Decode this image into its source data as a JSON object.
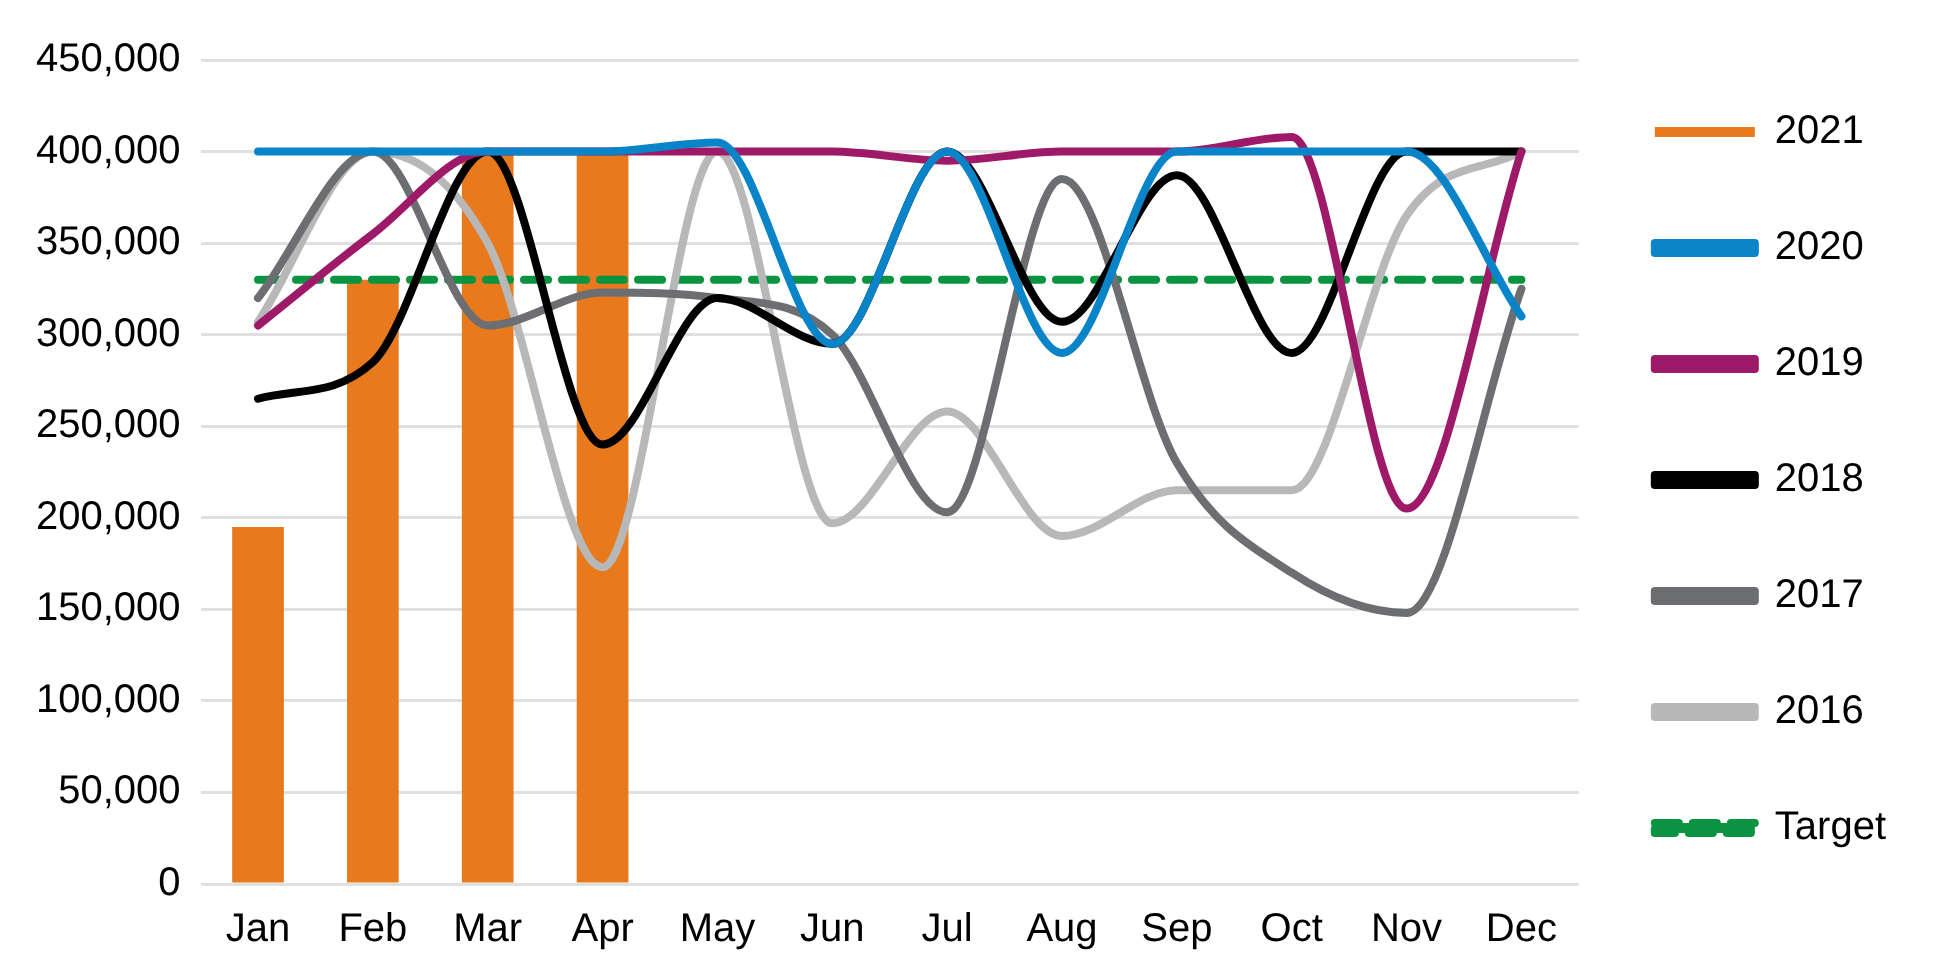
{
  "chart_data": {
    "type": "line",
    "categories": [
      "Jan",
      "Feb",
      "Mar",
      "Apr",
      "May",
      "Jun",
      "Jul",
      "Aug",
      "Sep",
      "Oct",
      "Nov",
      "Dec"
    ],
    "series": [
      {
        "name": "2021",
        "type": "bar",
        "color": "#e8791c",
        "values": [
          195000,
          330000,
          400000,
          400000,
          null,
          null,
          null,
          null,
          null,
          null,
          null,
          null
        ]
      },
      {
        "name": "2020",
        "color": "#0a84c8",
        "values": [
          400000,
          400000,
          400000,
          400000,
          405000,
          295000,
          400000,
          290000,
          400000,
          400000,
          400000,
          310000
        ]
      },
      {
        "name": "2019",
        "color": "#9e1a68",
        "values": [
          305000,
          355000,
          400000,
          400000,
          400000,
          400000,
          395000,
          400000,
          400000,
          408000,
          205000,
          400000
        ]
      },
      {
        "name": "2018",
        "color": "#000000",
        "values": [
          265000,
          285000,
          400000,
          240000,
          320000,
          295000,
          400000,
          307000,
          387000,
          290000,
          400000,
          400000
        ]
      },
      {
        "name": "2017",
        "color": "#6d6e71",
        "values": [
          320000,
          400000,
          305000,
          323000,
          320000,
          300000,
          203000,
          385000,
          230000,
          170000,
          148000,
          325000
        ]
      },
      {
        "name": "2016",
        "color": "#b8b8b8",
        "values": [
          307000,
          400000,
          350000,
          173000,
          400000,
          197000,
          258000,
          190000,
          215000,
          215000,
          365000,
          400000
        ]
      },
      {
        "name": "Target",
        "color": "#0a9340",
        "line_style": "dashed",
        "values": [
          330000,
          330000,
          330000,
          330000,
          330000,
          330000,
          330000,
          330000,
          330000,
          330000,
          330000,
          330000
        ]
      }
    ],
    "ylim": [
      0,
      450000
    ],
    "yticks": [
      {
        "value": 0,
        "label": "0"
      },
      {
        "value": 50000,
        "label": "50,000"
      },
      {
        "value": 100000,
        "label": "100,000"
      },
      {
        "value": 150000,
        "label": "150,000"
      },
      {
        "value": 200000,
        "label": "200,000"
      },
      {
        "value": 250000,
        "label": "250,000"
      },
      {
        "value": 300000,
        "label": "300,000"
      },
      {
        "value": 350000,
        "label": "350,000"
      },
      {
        "value": 400000,
        "label": "400,000"
      },
      {
        "value": 450000,
        "label": "450,000"
      }
    ],
    "grid": "y",
    "legend": "right",
    "marker": "none",
    "line_style": "solid"
  }
}
